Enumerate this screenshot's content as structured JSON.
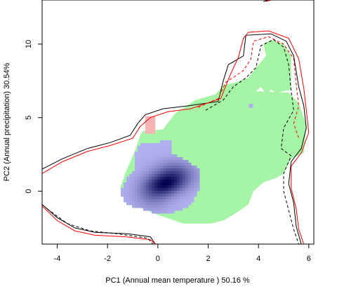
{
  "chart_data": {
    "type": "heatmap",
    "title": "",
    "xlabel": "PC1 (Annual mean temperature ) 50.16 %",
    "ylabel": "PC2 (Annual precipitation) 30.54%",
    "xlim": [
      -4.6,
      6.2
    ],
    "ylim": [
      -3.6,
      13.0
    ],
    "x_ticks": [
      -4,
      -2,
      0,
      2,
      4,
      6
    ],
    "y_ticks": [
      0,
      5,
      10
    ],
    "grid": false,
    "legend": "none",
    "colors": {
      "green_region": "#a6f5a6",
      "pink_region": "#f7b3b3",
      "density_low": "#b0b0ee",
      "density_high": "#000050",
      "line_black": "#000000",
      "line_red": "#ff0000"
    },
    "series": [
      {
        "kind": "area",
        "color": "#a6f5a6",
        "points": [
          [
            -0.6,
            4.1
          ],
          [
            0.2,
            4.2
          ],
          [
            0.7,
            5.3
          ],
          [
            1.5,
            6.2
          ],
          [
            2.3,
            6.6
          ],
          [
            2.6,
            7.2
          ],
          [
            3.1,
            7.4
          ],
          [
            3.6,
            7.7
          ],
          [
            4.0,
            8.6
          ],
          [
            4.3,
            9.2
          ],
          [
            4.2,
            10.0
          ],
          [
            4.5,
            10.3
          ],
          [
            5.0,
            10.0
          ],
          [
            5.3,
            9.2
          ],
          [
            5.3,
            6.9
          ],
          [
            4.7,
            6.7
          ],
          [
            4.5,
            6.9
          ],
          [
            4.3,
            6.6
          ],
          [
            4.1,
            7.1
          ],
          [
            3.9,
            6.8
          ],
          [
            5.2,
            6.7
          ],
          [
            5.6,
            6.0
          ],
          [
            5.9,
            4.5
          ],
          [
            5.8,
            2.6
          ],
          [
            5.3,
            2.2
          ],
          [
            5.0,
            1.2
          ],
          [
            4.7,
            0.9
          ],
          [
            4.2,
            0.6
          ],
          [
            3.8,
            0.0
          ],
          [
            3.6,
            -0.9
          ],
          [
            3.1,
            -1.5
          ],
          [
            2.6,
            -2.0
          ],
          [
            2.1,
            -2.2
          ],
          [
            1.0,
            -2.2
          ],
          [
            0.0,
            -1.6
          ],
          [
            -1.2,
            -0.8
          ],
          [
            -1.5,
            0.2
          ],
          [
            -1.3,
            1.2
          ],
          [
            -0.9,
            2.8
          ],
          [
            -0.7,
            3.8
          ]
        ]
      },
      {
        "kind": "area",
        "color": "#f7b3b3",
        "points": [
          [
            -0.5,
            3.9
          ],
          [
            -0.1,
            3.9
          ],
          [
            -0.1,
            5.1
          ],
          [
            -0.5,
            5.1
          ]
        ]
      },
      {
        "kind": "density",
        "peaks": [
          {
            "x": -0.2,
            "y": -0.1,
            "sx": 0.55,
            "sy": 0.85,
            "w": 0.55
          },
          {
            "x": 0.7,
            "y": 1.1,
            "sx": 0.6,
            "sy": 0.7,
            "w": 0.75
          },
          {
            "x": 0.3,
            "y": 0.4,
            "sx": 0.5,
            "sy": 0.5,
            "w": 0.5
          }
        ],
        "outline": [
          [
            -0.7,
            3.3
          ],
          [
            0.5,
            3.4
          ],
          [
            0.6,
            2.5
          ],
          [
            1.2,
            2.0
          ],
          [
            1.6,
            1.6
          ],
          [
            1.7,
            0.5
          ],
          [
            1.5,
            -0.4
          ],
          [
            1.2,
            -1.1
          ],
          [
            0.5,
            -1.5
          ],
          [
            -0.3,
            -1.4
          ],
          [
            -1.2,
            -0.9
          ],
          [
            -1.5,
            -0.2
          ],
          [
            -1.3,
            0.7
          ],
          [
            -0.9,
            1.5
          ],
          [
            -0.9,
            2.6
          ]
        ],
        "outlier": [
          3.7,
          5.8
        ]
      },
      {
        "kind": "line",
        "color": "#000000",
        "dash": false,
        "points": [
          [
            -4.6,
            1.5
          ],
          [
            -3.8,
            2.2
          ],
          [
            -2.8,
            2.9
          ],
          [
            -1.9,
            3.3
          ],
          [
            -1.1,
            3.8
          ],
          [
            -0.8,
            4.6
          ],
          [
            -0.5,
            5.2
          ],
          [
            0.2,
            5.6
          ],
          [
            1.2,
            5.8
          ],
          [
            2.4,
            6.1
          ],
          [
            2.6,
            7.5
          ],
          [
            2.8,
            8.6
          ],
          [
            3.4,
            9.2
          ],
          [
            3.5,
            10.6
          ],
          [
            4.5,
            10.7
          ],
          [
            5.1,
            10.2
          ],
          [
            5.4,
            9.2
          ],
          [
            5.6,
            7.1
          ],
          [
            5.8,
            5.8
          ],
          [
            5.9,
            4.3
          ],
          [
            5.7,
            2.9
          ],
          [
            5.3,
            2.0
          ],
          [
            5.2,
            0.5
          ],
          [
            5.4,
            -0.8
          ],
          [
            5.5,
            -2.4
          ],
          [
            5.7,
            -3.6
          ]
        ]
      },
      {
        "kind": "line",
        "color": "#000000",
        "dash": false,
        "points": [
          [
            -4.6,
            -0.9
          ],
          [
            -4.0,
            -1.8
          ],
          [
            -3.3,
            -2.5
          ],
          [
            -2.5,
            -2.8
          ],
          [
            -1.2,
            -2.9
          ],
          [
            -0.3,
            -3.1
          ],
          [
            -0.1,
            -3.6
          ]
        ]
      },
      {
        "kind": "line",
        "color": "#ff0000",
        "dash": false,
        "points": [
          [
            -4.6,
            1.2
          ],
          [
            -3.8,
            2.0
          ],
          [
            -2.8,
            2.7
          ],
          [
            -1.9,
            3.1
          ],
          [
            -1.0,
            3.6
          ],
          [
            -0.7,
            4.4
          ],
          [
            -0.3,
            5.0
          ],
          [
            0.4,
            5.4
          ],
          [
            1.3,
            5.6
          ],
          [
            2.5,
            6.3
          ],
          [
            2.9,
            8.0
          ],
          [
            3.2,
            9.1
          ],
          [
            3.4,
            10.4
          ],
          [
            3.6,
            10.8
          ],
          [
            4.4,
            10.9
          ],
          [
            5.2,
            10.4
          ],
          [
            5.6,
            9.0
          ],
          [
            5.8,
            7.0
          ],
          [
            5.9,
            5.5
          ],
          [
            6.0,
            4.0
          ],
          [
            5.7,
            2.6
          ],
          [
            5.3,
            1.7
          ],
          [
            5.3,
            0.2
          ],
          [
            5.5,
            -1.2
          ],
          [
            5.6,
            -2.6
          ],
          [
            5.8,
            -3.6
          ]
        ]
      },
      {
        "kind": "line",
        "color": "#ff0000",
        "dash": false,
        "points": [
          [
            -4.6,
            -1.0
          ],
          [
            -4.0,
            -2.0
          ],
          [
            -3.3,
            -2.7
          ],
          [
            -2.5,
            -3.0
          ],
          [
            -1.3,
            -3.1
          ],
          [
            -0.3,
            -3.3
          ],
          [
            -0.1,
            -3.6
          ]
        ]
      },
      {
        "kind": "line",
        "color": "#ff0000",
        "dash": true,
        "points": [
          [
            1.6,
            5.7
          ],
          [
            2.4,
            6.3
          ],
          [
            2.7,
            7.4
          ],
          [
            3.4,
            8.2
          ],
          [
            3.7,
            9.0
          ],
          [
            3.8,
            10.2
          ],
          [
            4.4,
            10.5
          ],
          [
            5.0,
            10.0
          ],
          [
            5.4,
            9.0
          ],
          [
            5.5,
            7.3
          ],
          [
            5.6,
            5.8
          ],
          [
            5.4,
            4.6
          ],
          [
            5.6,
            3.6
          ]
        ]
      },
      {
        "kind": "line",
        "color": "#000000",
        "dash": true,
        "points": [
          [
            1.9,
            5.5
          ],
          [
            2.6,
            6.2
          ],
          [
            3.0,
            7.1
          ],
          [
            3.5,
            7.7
          ],
          [
            3.9,
            8.4
          ],
          [
            4.1,
            9.9
          ],
          [
            4.6,
            10.3
          ],
          [
            5.0,
            9.8
          ],
          [
            5.2,
            8.6
          ],
          [
            5.3,
            6.8
          ],
          [
            5.4,
            5.5
          ],
          [
            5.0,
            4.3
          ],
          [
            4.9,
            2.9
          ],
          [
            5.3,
            2.4
          ],
          [
            5.0,
            1.2
          ],
          [
            5.0,
            0.0
          ],
          [
            5.2,
            -1.3
          ],
          [
            5.4,
            -2.6
          ],
          [
            5.6,
            -3.6
          ]
        ]
      },
      {
        "kind": "line",
        "color": "#000000",
        "dash": true,
        "points": [
          [
            -4.4,
            -1.2
          ],
          [
            -3.6,
            -2.2
          ],
          [
            -2.7,
            -2.7
          ],
          [
            -1.6,
            -2.9
          ],
          [
            -0.4,
            -3.2
          ],
          [
            -0.2,
            -3.6
          ]
        ]
      },
      {
        "kind": "line",
        "color": "#000000",
        "dash": false,
        "points": [
          [
            4.2,
            12.9
          ],
          [
            4.4,
            13.0
          ]
        ]
      },
      {
        "kind": "line",
        "color": "#ff0000",
        "dash": false,
        "points": [
          [
            4.3,
            12.9
          ],
          [
            4.5,
            13.0
          ]
        ]
      }
    ]
  }
}
